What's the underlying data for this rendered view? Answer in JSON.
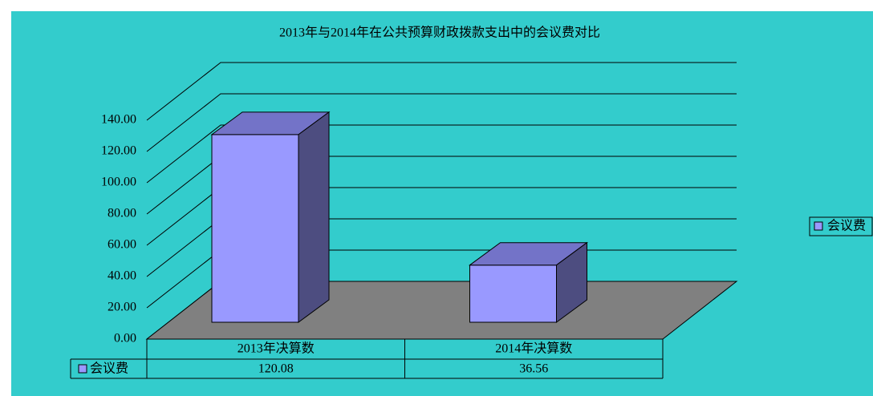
{
  "chart_data": {
    "type": "bar3d",
    "title": "2013年与2014年在公共预算财政拨款支出中的会议费对比",
    "categories": [
      "2013年决算数",
      "2014年决算数"
    ],
    "series": [
      {
        "name": "会议费",
        "color": "#9999FF",
        "values": [
          120.08,
          36.56
        ]
      }
    ],
    "ylim": [
      0,
      140
    ],
    "yticks": [
      {
        "value": 0,
        "label": "0.00"
      },
      {
        "value": 20,
        "label": "20.00"
      },
      {
        "value": 40,
        "label": "40.00"
      },
      {
        "value": 60,
        "label": "60.00"
      },
      {
        "value": 80,
        "label": "80.00"
      },
      {
        "value": 100,
        "label": "100.00"
      },
      {
        "value": 120,
        "label": "120.00"
      },
      {
        "value": 140,
        "label": "140.00"
      }
    ],
    "grid": true,
    "legend": "right",
    "data_table": true
  }
}
